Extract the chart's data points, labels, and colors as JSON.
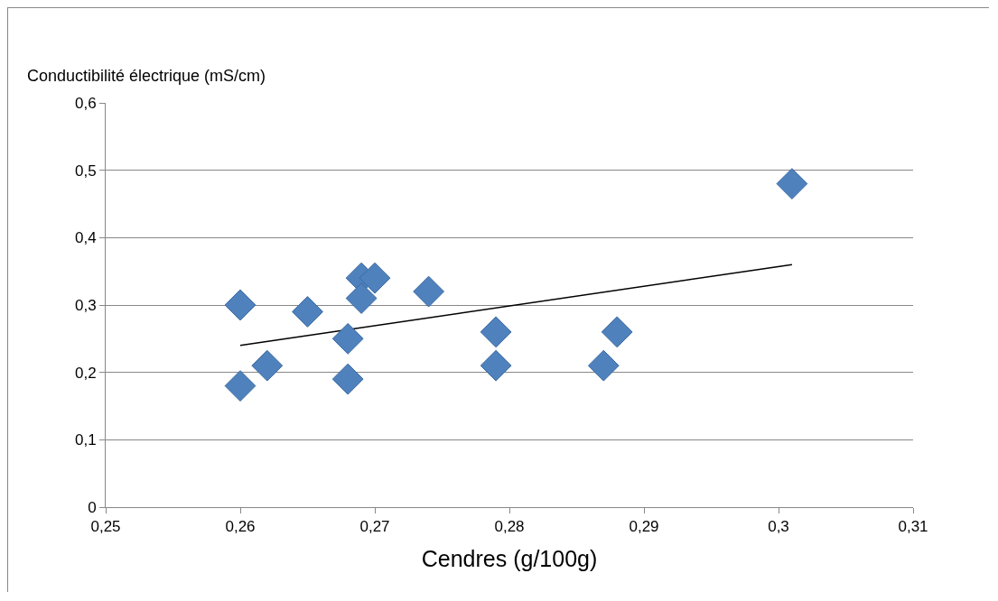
{
  "chart_data": {
    "type": "scatter",
    "xlabel": "Cendres (g/100g)",
    "ylabel": "Conductibilité électrique (mS/cm)",
    "x": [
      0.26,
      0.26,
      0.262,
      0.265,
      0.268,
      0.268,
      0.269,
      0.269,
      0.27,
      0.274,
      0.279,
      0.279,
      0.287,
      0.288,
      0.301
    ],
    "series": [
      {
        "color": "#4f81bd",
        "values": [
          0.3,
          0.18,
          0.21,
          0.29,
          0.25,
          0.19,
          0.34,
          0.31,
          0.34,
          0.32,
          0.26,
          0.21,
          0.21,
          0.26,
          0.48
        ]
      },
      {
        "type": "line",
        "marker": "none",
        "color": "#000000",
        "x": [
          0.26,
          0.301
        ],
        "values": [
          0.24,
          0.36
        ]
      }
    ],
    "xlim": [
      0.25,
      0.31
    ],
    "xticks": [
      {
        "value": 0.25,
        "label": "0,25"
      },
      {
        "value": 0.26,
        "label": "0,26"
      },
      {
        "value": 0.27,
        "label": "0,27"
      },
      {
        "value": 0.28,
        "label": "0,28"
      },
      {
        "value": 0.29,
        "label": "0,29"
      },
      {
        "value": 0.3,
        "label": "0,3"
      },
      {
        "value": 0.31,
        "label": "0,31"
      }
    ],
    "ylim": [
      0,
      0.6
    ],
    "yticks": [
      0,
      {
        "value": 0.1,
        "label": "0,1"
      },
      {
        "value": 0.2,
        "label": "0,2"
      },
      {
        "value": 0.3,
        "label": "0,3"
      },
      {
        "value": 0.4,
        "label": "0,4"
      },
      {
        "value": 0.5,
        "label": "0,5"
      },
      {
        "value": 0.6,
        "label": "0,6"
      }
    ],
    "grid": "y",
    "marker": "diamond"
  }
}
